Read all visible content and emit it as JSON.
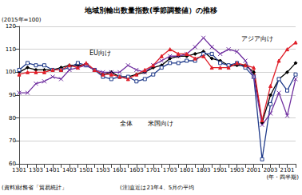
{
  "chart_data": {
    "type": "line",
    "title": "地域別輸出数量指数(季節調整値）の推移",
    "y_label": "(2015年=100)",
    "x_label": "(年・四半期)",
    "source": "(資料)財務省「貿易統計」",
    "note": "(注)直近は21年4、5月の平均",
    "categories": [
      "1301",
      null,
      "1303",
      null,
      "1401",
      null,
      "1403",
      null,
      "1501",
      null,
      "1503",
      null,
      "1601",
      null,
      "1603",
      null,
      "1701",
      null,
      "1703",
      null,
      "1801",
      null,
      "1803",
      null,
      "1901",
      null,
      "1903",
      null,
      "2001",
      null,
      "2003",
      null,
      "2101",
      null
    ],
    "series": [
      {
        "name": "全体",
        "color": "#000000",
        "marker": "diamond",
        "values": [
          100,
          102,
          101,
          101,
          101,
          102,
          103,
          103,
          103,
          101,
          99,
          100,
          98,
          98,
          99,
          100,
          102,
          103,
          106,
          107,
          107,
          108,
          109,
          106,
          105,
          103,
          103,
          103,
          100,
          78,
          90,
          97,
          100,
          104
        ]
      },
      {
        "name": "米国向け",
        "color": "#1f3a8a",
        "marker": "square",
        "values": [
          101,
          104,
          103,
          103,
          101,
          101,
          102,
          104,
          103,
          101,
          98,
          97,
          98,
          98,
          96,
          97,
          99,
          102,
          104,
          104,
          105,
          105,
          108,
          108,
          104,
          103,
          104,
          102,
          98,
          62,
          86,
          97,
          92,
          99
        ]
      },
      {
        "name": "EU向け",
        "color": "#7030a0",
        "marker": "x",
        "values": [
          91,
          91,
          95,
          96,
          98,
          97,
          101,
          102,
          103,
          101,
          100,
          100,
          100,
          103,
          101,
          100,
          103,
          105,
          107,
          107,
          108,
          111,
          115,
          111,
          108,
          110,
          109,
          105,
          98,
          77,
          82,
          91,
          81,
          97
        ]
      },
      {
        "name": "アジア向け",
        "color": "#e0202a",
        "marker": "triangle",
        "values": [
          99,
          100,
          100,
          100,
          101,
          101,
          103,
          102,
          104,
          101,
          99,
          99,
          98,
          97,
          99,
          101,
          103,
          107,
          110,
          108,
          108,
          106,
          107,
          102,
          102,
          102,
          104,
          103,
          102,
          79,
          94,
          105,
          110,
          113
        ]
      }
    ],
    "ylim": [
      60,
      120
    ],
    "yticks": [
      60,
      70,
      80,
      90,
      100,
      110,
      120
    ],
    "grid": true
  }
}
